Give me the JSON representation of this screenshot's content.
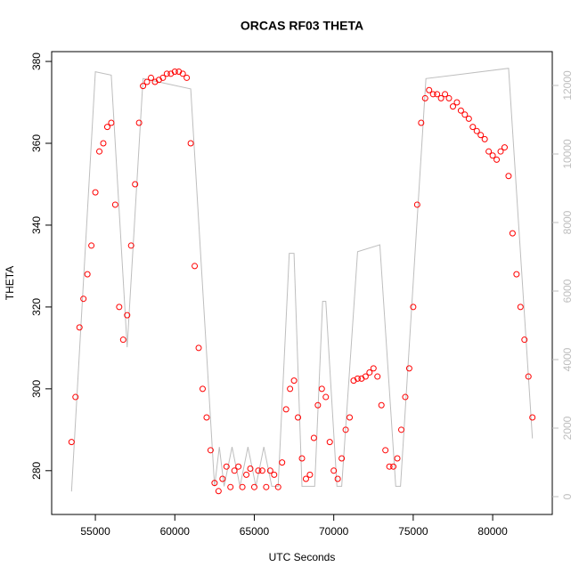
{
  "chart_data": {
    "type": "scatter",
    "title": "ORCAS RF03 THETA",
    "x_label": "UTC Seconds",
    "y_label": "THETA",
    "xlim": [
      52250,
      83750
    ],
    "ylim": [
      269.3,
      382.4
    ],
    "y2lim": [
      -520,
      12987
    ],
    "xticks": [
      55000,
      60000,
      65000,
      70000,
      75000,
      80000
    ],
    "yticks": [
      280,
      300,
      320,
      340,
      360,
      380
    ],
    "y2ticks": [
      0,
      2000,
      4000,
      6000,
      8000,
      10000,
      12000
    ],
    "series": [
      {
        "color": "#ff0000",
        "marker": "circle",
        "x": [
          53500,
          53750,
          54000,
          54250,
          54500,
          54750,
          55000,
          55250,
          55500,
          55750,
          56000,
          56250,
          56500,
          56750,
          57000,
          57250,
          57500,
          57750,
          58000,
          58250,
          58500,
          58750,
          59000,
          59250,
          59500,
          59750,
          60000,
          60250,
          60500,
          60750,
          61000,
          61250,
          61500,
          61750,
          62000,
          62250,
          62500,
          62750,
          63000,
          63250,
          63500,
          63750,
          64000,
          64250,
          64500,
          64750,
          65000,
          65250,
          65500,
          65750,
          66000,
          66250,
          66500,
          66750,
          67000,
          67250,
          67500,
          67750,
          68000,
          68250,
          68500,
          68750,
          69000,
          69250,
          69500,
          69750,
          70000,
          70250,
          70500,
          70750,
          71000,
          71250,
          71500,
          71750,
          72000,
          72250,
          72500,
          72750,
          73000,
          73250,
          73500,
          73750,
          74000,
          74250,
          74500,
          74750,
          75000,
          75250,
          75500,
          75750,
          76000,
          76250,
          76500,
          76750,
          77000,
          77250,
          77500,
          77750,
          78000,
          78250,
          78500,
          78750,
          79000,
          79250,
          79500,
          79750,
          80000,
          80250,
          80500,
          80750,
          81000,
          81250,
          81500,
          81750,
          82000,
          82250,
          82500
        ],
        "values": [
          287,
          298,
          315,
          322,
          328,
          335,
          348,
          358,
          360,
          364,
          365,
          345,
          320,
          312,
          318,
          335,
          350,
          365,
          374,
          375,
          376,
          375,
          375.5,
          376,
          377,
          377,
          377.5,
          377.5,
          377,
          376,
          360,
          330,
          310,
          300,
          293,
          285,
          277,
          275,
          278,
          281,
          276,
          280,
          281,
          276,
          279,
          280.5,
          276,
          280,
          280,
          276,
          280,
          279,
          276,
          282,
          295,
          300,
          302,
          293,
          283,
          278,
          279,
          288,
          296,
          300,
          298,
          287,
          280,
          278,
          283,
          290,
          293,
          302,
          302.5,
          302.5,
          303,
          304,
          305,
          303,
          296,
          285,
          281,
          281,
          283,
          290,
          298,
          305,
          320,
          345,
          365,
          371,
          373,
          372,
          372,
          371,
          372,
          371,
          369,
          370,
          368,
          367,
          366,
          364,
          363,
          362,
          361,
          358,
          357,
          356,
          358,
          359,
          352,
          338,
          328,
          320,
          312,
          303,
          293
        ]
      },
      {
        "color": "#bebebe",
        "marker": "line",
        "axis": "y2",
        "x": [
          53500,
          55000,
          56000,
          57000,
          58000,
          61000,
          62500,
          62800,
          63100,
          63600,
          64100,
          64600,
          65100,
          65600,
          66100,
          66500,
          67200,
          67500,
          68000,
          68800,
          69300,
          69500,
          70200,
          70500,
          71500,
          72900,
          73900,
          74200,
          75800,
          81000,
          82500
        ],
        "values": [
          150,
          12400,
          12300,
          4360,
          12200,
          11900,
          300,
          1450,
          300,
          1450,
          300,
          1450,
          300,
          1450,
          300,
          300,
          7100,
          7100,
          300,
          300,
          5700,
          5700,
          300,
          300,
          7150,
          7350,
          300,
          300,
          12200,
          12500,
          1700
        ]
      }
    ]
  }
}
